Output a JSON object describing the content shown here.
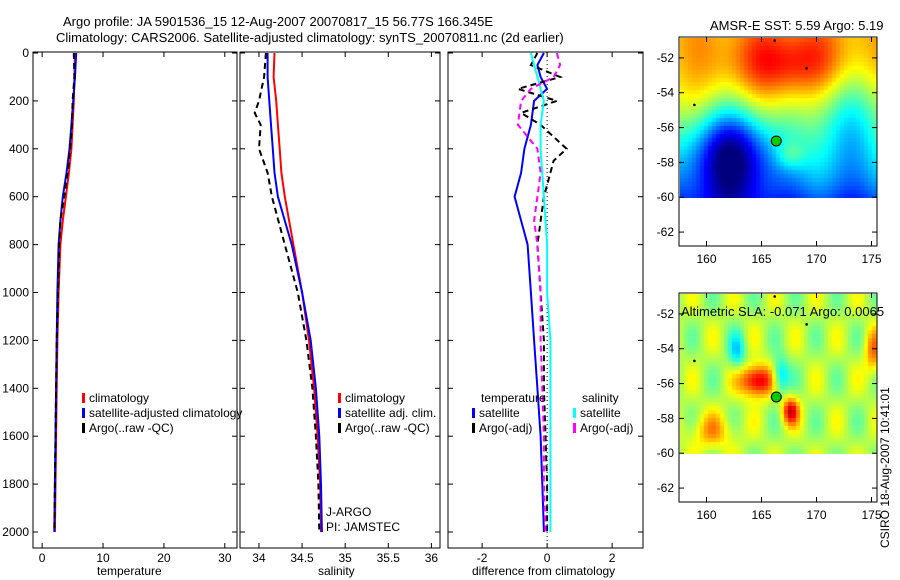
{
  "header": {
    "line1": "Argo profile: JA 5901536_15 12-Aug-2007 20070817_15 56.77S 166.345E",
    "line2": "Climatology: CARS2006. Satellite-adjusted climatology: synTS_20070811.nc (2d earlier)"
  },
  "stamp": "CSIRO 18-Aug-2007 10:41:01",
  "colors": {
    "red": "#ff0000",
    "blue": "#0000ff",
    "black": "#000000",
    "cyan": "#00ffff",
    "magenta": "#ff00ff"
  },
  "chart_data": [
    {
      "type": "line",
      "id": "temp",
      "xlabel": "temperature",
      "ylabel": "",
      "xlim": [
        -1.5,
        32
      ],
      "ylim": [
        2050,
        0
      ],
      "xticks": [
        0,
        10,
        20,
        30
      ],
      "yticks": [
        0,
        200,
        400,
        600,
        800,
        1000,
        1200,
        1400,
        1600,
        1800,
        2000
      ],
      "legend": [
        "climatology",
        "satellite-adjusted climatology",
        "Argo(..raw -QC)"
      ],
      "series": [
        {
          "name": "climatology",
          "color": "red",
          "dash": false,
          "depth": [
            0,
            100,
            200,
            300,
            400,
            500,
            600,
            700,
            800,
            1000,
            1200,
            1400,
            1600,
            1800,
            2000
          ],
          "values": [
            5.4,
            5.3,
            5.2,
            5.0,
            4.8,
            4.4,
            3.9,
            3.4,
            3.0,
            2.7,
            2.5,
            2.4,
            2.3,
            2.2,
            2.1
          ]
        },
        {
          "name": "satellite-adjusted climatology",
          "color": "blue",
          "dash": false,
          "depth": [
            0,
            100,
            200,
            300,
            400,
            500,
            600,
            700,
            800,
            1000,
            1200,
            1400,
            1600,
            1800,
            2000
          ],
          "values": [
            5.6,
            5.4,
            5.1,
            4.8,
            4.5,
            4.0,
            3.4,
            3.0,
            2.7,
            2.5,
            2.4,
            2.3,
            2.2,
            2.1,
            2.0
          ]
        },
        {
          "name": "Argo(..raw -QC)",
          "color": "black",
          "dash": true,
          "depth": [
            0,
            100,
            200,
            300,
            400,
            500,
            600,
            700,
            800,
            1000,
            1200,
            1400,
            1600,
            1800,
            2000
          ],
          "values": [
            5.2,
            5.3,
            5.0,
            4.9,
            4.6,
            4.2,
            3.6,
            3.0,
            2.8,
            2.6,
            2.4,
            2.3,
            2.2,
            2.1,
            2.0
          ]
        }
      ]
    },
    {
      "type": "line",
      "id": "sal",
      "xlabel": "salinity",
      "ylabel": "",
      "xlim": [
        33.78,
        36.1
      ],
      "ylim": [
        2050,
        0
      ],
      "xticks": [
        34,
        34.5,
        35,
        35.5,
        36
      ],
      "legend": [
        "climatology",
        "satellite adj. clim.",
        "Argo(..raw -QC)"
      ],
      "annotations": [
        "J-ARGO",
        "PI: JAMSTEC"
      ],
      "series": [
        {
          "name": "climatology",
          "color": "red",
          "dash": false,
          "depth": [
            0,
            100,
            200,
            300,
            400,
            500,
            600,
            800,
            1000,
            1200,
            1400,
            1600,
            1800,
            2000
          ],
          "values": [
            34.18,
            34.17,
            34.2,
            34.22,
            34.24,
            34.26,
            34.3,
            34.4,
            34.5,
            34.58,
            34.64,
            34.68,
            34.71,
            34.72
          ]
        },
        {
          "name": "satellite adj. clim.",
          "color": "blue",
          "dash": false,
          "depth": [
            0,
            100,
            200,
            300,
            400,
            500,
            600,
            800,
            1000,
            1200,
            1400,
            1600,
            1800,
            2000
          ],
          "values": [
            34.1,
            34.1,
            34.12,
            34.14,
            34.16,
            34.18,
            34.22,
            34.38,
            34.5,
            34.6,
            34.66,
            34.7,
            34.72,
            34.73
          ]
        },
        {
          "name": "Argo(..raw -QC)",
          "color": "black",
          "dash": true,
          "depth": [
            0,
            100,
            200,
            250,
            300,
            400,
            500,
            600,
            800,
            1000,
            1200,
            1400,
            1600,
            1800,
            2000
          ],
          "values": [
            34.08,
            34.06,
            34.0,
            33.95,
            34.02,
            34.0,
            34.1,
            34.15,
            34.3,
            34.45,
            34.55,
            34.62,
            34.66,
            34.69,
            34.7
          ]
        }
      ]
    },
    {
      "type": "line",
      "id": "diff",
      "xlabel": "difference from climatology",
      "ylabel": "",
      "xlim": [
        -3.05,
        2.95
      ],
      "ylim": [
        2050,
        0
      ],
      "xticks": [
        -2,
        0,
        2
      ],
      "legend_left": [
        "temperature",
        "satellite",
        "Argo(-adj)"
      ],
      "legend_right": [
        "salinity",
        "satellite",
        "Argo(-adj)"
      ],
      "series": [
        {
          "name": "temperature satellite",
          "color": "blue",
          "dash": false,
          "depth": [
            0,
            50,
            100,
            150,
            200,
            300,
            400,
            500,
            600,
            700,
            800,
            1000,
            1200,
            1400,
            1600,
            1800,
            2000
          ],
          "values": [
            -0.1,
            -0.3,
            -0.2,
            0.0,
            -0.4,
            -0.5,
            -0.7,
            -0.8,
            -1.0,
            -0.8,
            -0.6,
            -0.5,
            -0.4,
            -0.3,
            -0.2,
            -0.15,
            -0.1
          ]
        },
        {
          "name": "temperature Argo(-adj)",
          "color": "black",
          "dash": true,
          "depth": [
            0,
            50,
            100,
            150,
            200,
            250,
            300,
            400,
            450,
            500,
            600,
            800,
            1000,
            1200,
            1400,
            1600,
            1800,
            2000
          ],
          "values": [
            -0.3,
            -0.5,
            0.4,
            -0.9,
            0.3,
            -0.8,
            -0.2,
            0.6,
            0.2,
            0.1,
            -0.1,
            -0.3,
            -0.2,
            -0.1,
            -0.1,
            -0.05,
            0.0,
            0.0
          ]
        },
        {
          "name": "salinity satellite",
          "color": "cyan",
          "dash": false,
          "depth": [
            0,
            100,
            200,
            300,
            400,
            600,
            800,
            1000,
            1200,
            1400,
            1600,
            1800,
            2000
          ],
          "values": [
            -0.5,
            -0.3,
            -0.1,
            -0.2,
            -0.2,
            -0.1,
            0.0,
            0.0,
            0.1,
            0.1,
            0.1,
            0.1,
            0.1
          ]
        },
        {
          "name": "salinity Argo(-adj)",
          "color": "magenta",
          "dash": true,
          "depth": [
            0,
            50,
            100,
            150,
            200,
            300,
            400,
            500,
            600,
            700,
            800,
            1000,
            1200,
            1400,
            1600,
            1800,
            2000
          ],
          "values": [
            0.3,
            0.4,
            0.2,
            -0.5,
            -0.8,
            -0.9,
            -0.3,
            -0.2,
            -0.3,
            -0.4,
            -0.3,
            -0.2,
            -0.2,
            -0.15,
            -0.1,
            -0.1,
            -0.05
          ]
        }
      ]
    },
    {
      "type": "heatmap",
      "id": "sst",
      "title": "AMSR-E SST: 5.59 Argo: 5.19",
      "xlim": [
        157.5,
        175.5
      ],
      "ylim": [
        -62.8,
        -50.8
      ],
      "xticks": [
        160,
        165,
        170,
        175
      ],
      "yticks": [
        -52,
        -54,
        -56,
        -58,
        -60,
        -62
      ],
      "float_position": {
        "lon": 166.345,
        "lat": -56.77
      }
    },
    {
      "type": "heatmap",
      "id": "sla",
      "title": "Altimetric SLA: -0.071 Argo: 0.0065",
      "xlim": [
        157.5,
        175.5
      ],
      "ylim": [
        -62.8,
        -50.8
      ],
      "xticks": [
        160,
        165,
        170,
        175
      ],
      "yticks": [
        -52,
        -54,
        -56,
        -58,
        -60,
        -62
      ],
      "float_position": {
        "lon": 166.345,
        "lat": -56.77
      }
    }
  ]
}
